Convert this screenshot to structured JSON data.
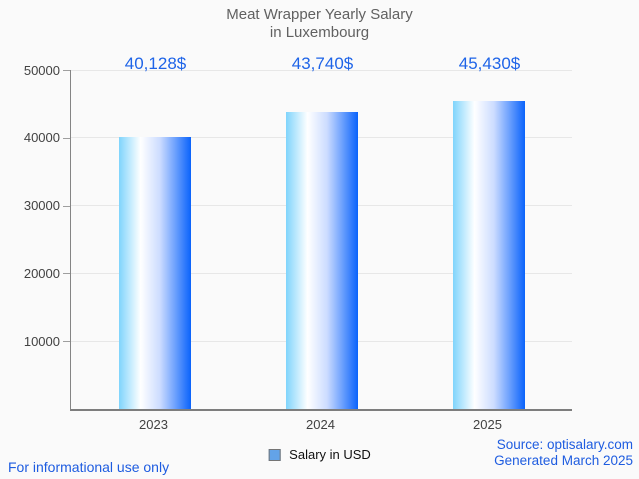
{
  "title": {
    "line1": "Meat Wrapper Yearly Salary",
    "line2": "in Luxembourg"
  },
  "chart_data": {
    "type": "bar",
    "title": "Meat Wrapper Yearly Salary in Luxembourg",
    "categories": [
      "2023",
      "2024",
      "2025"
    ],
    "series": [
      {
        "name": "Salary in USD",
        "values": [
          40128,
          43740,
          45430
        ]
      }
    ],
    "value_labels": [
      "40,128$",
      "43,740$",
      "45,430$"
    ],
    "ylim": [
      0,
      50000
    ],
    "yticks": [
      10000,
      20000,
      30000,
      40000,
      50000
    ],
    "ytick_labels": [
      "10000",
      "20000",
      "30000",
      "40000",
      "50000"
    ],
    "grid": true,
    "legend_position": "bottom",
    "colors": {
      "bar_gradient_left": "#7fd4fc",
      "bar_gradient_mid": "#ffffff",
      "bar_gradient_right": "#0a63fb",
      "value_label_blue": "#1e64e8",
      "footer_blue": "#1e5ce0",
      "title_gray": "#616161",
      "axis_gray": "#424242",
      "legend_marker_fill": "#63a3e8"
    }
  },
  "legend": {
    "label": "Salary in USD"
  },
  "footer": {
    "left": "For informational use only",
    "source": "Source: optisalary.com",
    "generated": "Generated March 2025"
  }
}
